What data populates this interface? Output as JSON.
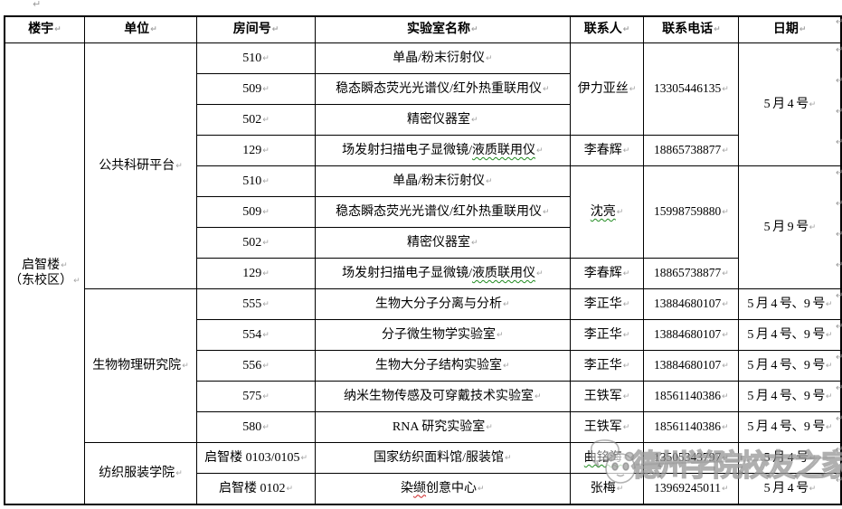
{
  "marks": {
    "paragraph": "↵"
  },
  "watermark": {
    "text": "德州学院校友之家"
  },
  "colors": {
    "spellcheck_green": "#1f8a1f",
    "spellcheck_red": "#cc2222",
    "border": "#000000",
    "formatting_mark": "#a3a3a3"
  },
  "table": {
    "headers": [
      "楼宇",
      "单位",
      "房间号",
      "实验室名称",
      "联系人",
      "联系电话",
      "日期"
    ],
    "rows": [
      {
        "cells": [
          {
            "col": "building",
            "lines": [
              "启智楼",
              "（东校区）"
            ],
            "rowspan": 15
          },
          {
            "col": "unit",
            "text": "公共科研平台",
            "rowspan": 8
          },
          {
            "col": "room",
            "text": "510"
          },
          {
            "col": "lab",
            "text": "单晶/粉末衍射仪"
          },
          {
            "col": "contact",
            "text": "伊力亚丝",
            "rowspan": 3
          },
          {
            "col": "phone",
            "text": "13305446135",
            "rowspan": 3
          },
          {
            "col": "date",
            "text": "5 月 4 号",
            "rowspan": 4
          }
        ]
      },
      {
        "cells": [
          {
            "col": "room",
            "text": "509"
          },
          {
            "col": "lab",
            "text": "稳态瞬态荧光光谱仪/红外热重联用仪"
          }
        ]
      },
      {
        "cells": [
          {
            "col": "room",
            "text": "502"
          },
          {
            "col": "lab",
            "text": "精密仪器室"
          }
        ]
      },
      {
        "cells": [
          {
            "col": "room",
            "text": "129"
          },
          {
            "col": "lab",
            "segs": [
              {
                "t": "场发射扫描电子显微镜/"
              },
              {
                "t": "液质联用仪",
                "u": "green"
              }
            ]
          },
          {
            "col": "contact",
            "text": "李春辉"
          },
          {
            "col": "phone",
            "text": "18865738877"
          }
        ]
      },
      {
        "cells": [
          {
            "col": "room",
            "text": "510"
          },
          {
            "col": "lab",
            "text": "单晶/粉末衍射仪"
          },
          {
            "col": "contact",
            "segs": [
              {
                "t": "沈亮",
                "u": "green"
              }
            ],
            "rowspan": 3
          },
          {
            "col": "phone",
            "text": "15998759880",
            "rowspan": 3
          },
          {
            "col": "date",
            "text": "5 月 9 号",
            "rowspan": 4
          }
        ]
      },
      {
        "cells": [
          {
            "col": "room",
            "text": "509"
          },
          {
            "col": "lab",
            "text": "稳态瞬态荧光光谱仪/红外热重联用仪"
          }
        ]
      },
      {
        "cells": [
          {
            "col": "room",
            "text": "502"
          },
          {
            "col": "lab",
            "text": "精密仪器室"
          }
        ]
      },
      {
        "cells": [
          {
            "col": "room",
            "text": "129"
          },
          {
            "col": "lab",
            "segs": [
              {
                "t": "场发射扫描电子显微镜/"
              },
              {
                "t": "液质联用仪",
                "u": "green"
              }
            ]
          },
          {
            "col": "contact",
            "text": "李春辉"
          },
          {
            "col": "phone",
            "text": "18865738877"
          }
        ]
      },
      {
        "cells": [
          {
            "col": "unit",
            "text": "生物物理研究院",
            "rowspan": 5
          },
          {
            "col": "room",
            "text": "555"
          },
          {
            "col": "lab",
            "text": "生物大分子分离与分析"
          },
          {
            "col": "contact",
            "text": "李正华"
          },
          {
            "col": "phone",
            "text": "13884680107"
          },
          {
            "col": "date",
            "text": "5 月 4 号、9 号"
          }
        ]
      },
      {
        "cells": [
          {
            "col": "room",
            "text": "554"
          },
          {
            "col": "lab",
            "text": "分子微生物学实验室"
          },
          {
            "col": "contact",
            "text": "李正华"
          },
          {
            "col": "phone",
            "text": "13884680107"
          },
          {
            "col": "date",
            "text": "5 月 4 号、9 号"
          }
        ]
      },
      {
        "cells": [
          {
            "col": "room",
            "text": "556"
          },
          {
            "col": "lab",
            "text": "生物大分子结构实验室"
          },
          {
            "col": "contact",
            "text": "李正华"
          },
          {
            "col": "phone",
            "text": "13884680107"
          },
          {
            "col": "date",
            "text": "5 月 4 号、9 号"
          }
        ]
      },
      {
        "cells": [
          {
            "col": "room",
            "text": "575"
          },
          {
            "col": "lab",
            "text": "纳米生物传感及可穿戴技术实验室"
          },
          {
            "col": "contact",
            "text": "王铁军"
          },
          {
            "col": "phone",
            "text": "18561140386"
          },
          {
            "col": "date",
            "text": "5 月 4 号、9 号"
          }
        ]
      },
      {
        "cells": [
          {
            "col": "room",
            "text": "580"
          },
          {
            "col": "lab",
            "text": "RNA 研究实验室"
          },
          {
            "col": "contact",
            "text": "王铁军"
          },
          {
            "col": "phone",
            "text": "18561140386"
          },
          {
            "col": "date",
            "text": "5 月 4 号、9 号"
          }
        ]
      },
      {
        "cells": [
          {
            "col": "unit",
            "text": "纺织服装学院",
            "rowspan": 2
          },
          {
            "col": "room",
            "text": "启智楼 0103/0105"
          },
          {
            "col": "lab",
            "text": "国家纺织面料馆/服装馆"
          },
          {
            "col": "contact",
            "segs": [
              {
                "t": "曲铭海",
                "u": "green"
              }
            ]
          },
          {
            "col": "phone",
            "text": "13505343797"
          },
          {
            "col": "date",
            "text": "5 月 4 号"
          }
        ]
      },
      {
        "cells": [
          {
            "col": "room",
            "text": "启智楼 0102"
          },
          {
            "col": "lab",
            "segs": [
              {
                "t": "染"
              },
              {
                "t": "缬",
                "u": "red"
              },
              {
                "t": "创意中心"
              }
            ]
          },
          {
            "col": "contact",
            "text": "张梅"
          },
          {
            "col": "phone",
            "text": "13969245011"
          },
          {
            "col": "date",
            "text": "5 月 4 号"
          }
        ]
      }
    ]
  }
}
